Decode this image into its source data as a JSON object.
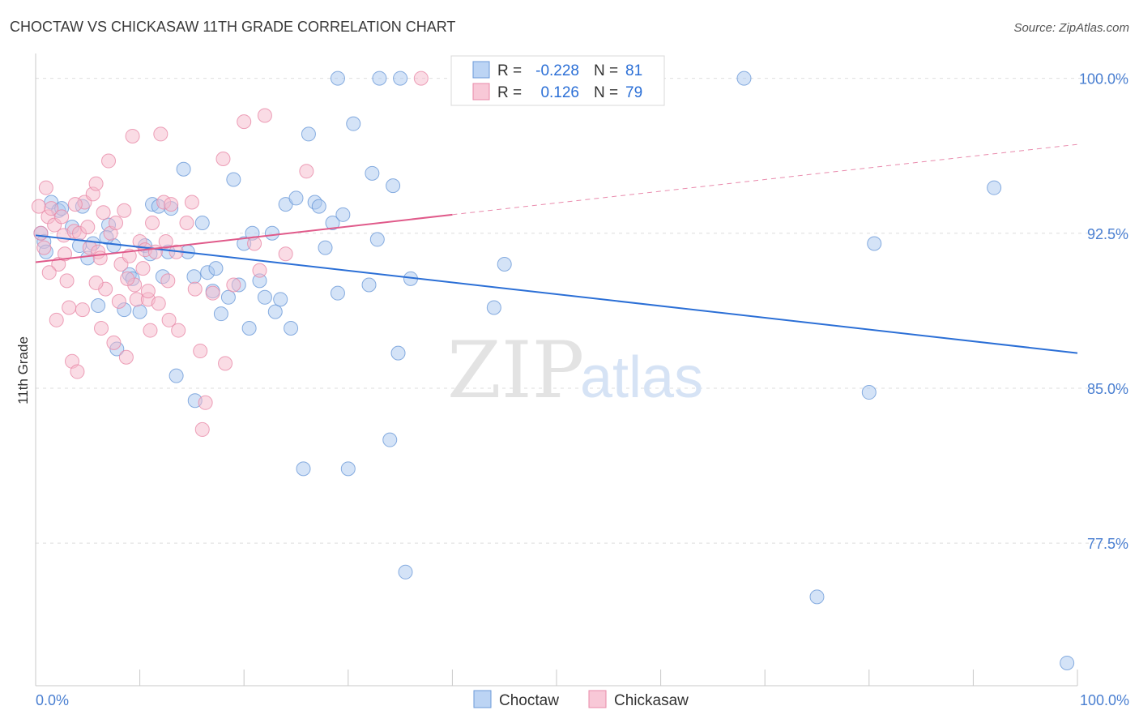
{
  "chart_data": {
    "type": "scatter",
    "title": "CHOCTAW VS CHICKASAW 11TH GRADE CORRELATION CHART",
    "source": "Source: ZipAtlas.com",
    "ylabel": "11th Grade",
    "xlim": [
      0,
      100
    ],
    "ylim": [
      70.6,
      101.2
    ],
    "yticks": [
      {
        "value": 100.0,
        "label": "100.0%"
      },
      {
        "value": 92.5,
        "label": "92.5%"
      },
      {
        "value": 85.0,
        "label": "85.0%"
      },
      {
        "value": 77.5,
        "label": "77.5%"
      }
    ],
    "xtick_labels": {
      "min": "0.0%",
      "max": "100.0%"
    },
    "grid": "horizontal dashed",
    "watermark": {
      "part1": "ZIP",
      "part2": "atlas"
    },
    "legend_stats": [
      {
        "r_label": "R =",
        "r_value": "-0.228",
        "n_label": "N =",
        "n_value": "81"
      },
      {
        "r_label": "R =",
        "r_value": "0.126",
        "n_label": "N =",
        "n_value": "79"
      }
    ],
    "series": [
      {
        "name": "Choctaw",
        "color": "#a9c8f0",
        "stroke": "#6b9ad8",
        "trend": {
          "x0": 0,
          "y0": 92.4,
          "x1": 100,
          "y1": 86.7,
          "color": "#2b6fd6"
        },
        "points": [
          [
            0.5,
            92.5
          ],
          [
            0.8,
            92.1
          ],
          [
            1.5,
            94.0
          ],
          [
            2.2,
            93.6
          ],
          [
            2.5,
            93.7
          ],
          [
            3.5,
            92.8
          ],
          [
            4.5,
            93.8
          ],
          [
            5.0,
            91.3
          ],
          [
            5.5,
            92.0
          ],
          [
            6.0,
            89.0
          ],
          [
            7.0,
            92.9
          ],
          [
            7.5,
            91.9
          ],
          [
            7.8,
            86.9
          ],
          [
            8.5,
            88.8
          ],
          [
            9.0,
            90.5
          ],
          [
            9.3,
            90.3
          ],
          [
            10.0,
            88.7
          ],
          [
            10.5,
            91.9
          ],
          [
            11.0,
            91.5
          ],
          [
            11.2,
            93.9
          ],
          [
            11.8,
            93.8
          ],
          [
            12.2,
            90.4
          ],
          [
            12.7,
            91.6
          ],
          [
            13.0,
            93.7
          ],
          [
            13.5,
            85.6
          ],
          [
            14.2,
            95.6
          ],
          [
            14.6,
            91.6
          ],
          [
            15.2,
            90.4
          ],
          [
            15.3,
            84.4
          ],
          [
            16.0,
            93.0
          ],
          [
            16.5,
            90.6
          ],
          [
            17.0,
            89.7
          ],
          [
            17.3,
            90.8
          ],
          [
            17.8,
            88.6
          ],
          [
            18.5,
            89.4
          ],
          [
            19.0,
            95.1
          ],
          [
            19.5,
            90.0
          ],
          [
            20.0,
            92.0
          ],
          [
            20.5,
            87.9
          ],
          [
            20.8,
            92.5
          ],
          [
            21.5,
            90.2
          ],
          [
            22.0,
            89.4
          ],
          [
            22.7,
            92.5
          ],
          [
            23.0,
            88.7
          ],
          [
            23.5,
            89.3
          ],
          [
            24.0,
            93.9
          ],
          [
            24.5,
            87.9
          ],
          [
            25.0,
            94.2
          ],
          [
            25.7,
            81.1
          ],
          [
            26.2,
            97.3
          ],
          [
            26.8,
            94.0
          ],
          [
            27.2,
            93.8
          ],
          [
            27.8,
            91.8
          ],
          [
            28.5,
            93.0
          ],
          [
            29.0,
            89.6
          ],
          [
            29.5,
            93.4
          ],
          [
            30.0,
            81.1
          ],
          [
            30.5,
            97.8
          ],
          [
            32.0,
            90.0
          ],
          [
            32.3,
            95.4
          ],
          [
            32.8,
            92.2
          ],
          [
            34.0,
            82.5
          ],
          [
            34.3,
            94.8
          ],
          [
            34.8,
            86.7
          ],
          [
            35.5,
            76.1
          ],
          [
            36.0,
            90.3
          ],
          [
            44.0,
            88.9
          ],
          [
            45.0,
            91.0
          ],
          [
            47.0,
            100.0
          ],
          [
            68.0,
            100.0
          ],
          [
            75.0,
            74.9
          ],
          [
            80.0,
            84.8
          ],
          [
            80.5,
            92.0
          ],
          [
            92.0,
            94.7
          ],
          [
            99.0,
            71.7
          ],
          [
            29.0,
            100.0
          ],
          [
            33.0,
            100.0
          ],
          [
            35.0,
            100.0
          ],
          [
            4.2,
            91.9
          ],
          [
            6.8,
            92.3
          ],
          [
            1.0,
            91.6
          ]
        ]
      },
      {
        "name": "Chickasaw",
        "color": "#f5b9cc",
        "stroke": "#e88aa8",
        "trend": {
          "x0": 0,
          "y0": 91.1,
          "x1": 40,
          "y1": 93.4,
          "dash_to_x": 100,
          "dash_to_y": 96.8,
          "color": "#e05a8a"
        },
        "points": [
          [
            0.3,
            93.8
          ],
          [
            0.5,
            92.5
          ],
          [
            0.8,
            91.8
          ],
          [
            1.0,
            94.7
          ],
          [
            1.2,
            93.3
          ],
          [
            1.5,
            93.7
          ],
          [
            1.8,
            92.9
          ],
          [
            2.0,
            88.3
          ],
          [
            2.2,
            91.0
          ],
          [
            2.5,
            93.3
          ],
          [
            2.7,
            92.4
          ],
          [
            3.0,
            90.2
          ],
          [
            3.2,
            88.9
          ],
          [
            3.5,
            86.3
          ],
          [
            3.7,
            92.6
          ],
          [
            4.0,
            85.8
          ],
          [
            4.2,
            92.5
          ],
          [
            4.5,
            88.8
          ],
          [
            4.7,
            94.0
          ],
          [
            5.0,
            92.8
          ],
          [
            5.2,
            91.8
          ],
          [
            5.5,
            94.4
          ],
          [
            5.8,
            94.9
          ],
          [
            6.0,
            91.6
          ],
          [
            6.2,
            91.3
          ],
          [
            6.5,
            93.5
          ],
          [
            6.7,
            89.8
          ],
          [
            7.0,
            96.0
          ],
          [
            7.2,
            92.5
          ],
          [
            7.5,
            87.2
          ],
          [
            7.7,
            93.0
          ],
          [
            8.0,
            89.2
          ],
          [
            8.2,
            91.0
          ],
          [
            8.5,
            93.6
          ],
          [
            8.7,
            86.5
          ],
          [
            9.0,
            91.4
          ],
          [
            9.3,
            97.2
          ],
          [
            9.5,
            90.0
          ],
          [
            9.7,
            89.3
          ],
          [
            10.0,
            92.1
          ],
          [
            10.3,
            90.8
          ],
          [
            10.5,
            91.7
          ],
          [
            10.8,
            89.3
          ],
          [
            11.0,
            87.8
          ],
          [
            11.2,
            93.0
          ],
          [
            11.5,
            91.6
          ],
          [
            11.8,
            89.1
          ],
          [
            12.0,
            97.3
          ],
          [
            12.3,
            94.0
          ],
          [
            12.5,
            92.1
          ],
          [
            12.8,
            88.3
          ],
          [
            13.0,
            93.9
          ],
          [
            13.5,
            91.6
          ],
          [
            13.7,
            87.8
          ],
          [
            14.5,
            93.0
          ],
          [
            15.0,
            94.0
          ],
          [
            15.3,
            89.8
          ],
          [
            15.8,
            86.8
          ],
          [
            16.3,
            84.3
          ],
          [
            17.0,
            89.6
          ],
          [
            18.0,
            96.1
          ],
          [
            18.2,
            86.2
          ],
          [
            20.0,
            97.9
          ],
          [
            21.0,
            92.0
          ],
          [
            21.5,
            90.7
          ],
          [
            22.0,
            98.2
          ],
          [
            24.0,
            91.5
          ],
          [
            26.0,
            95.5
          ],
          [
            37.0,
            100.0
          ],
          [
            1.3,
            90.6
          ],
          [
            2.8,
            91.5
          ],
          [
            6.3,
            87.9
          ],
          [
            8.8,
            90.3
          ],
          [
            12.7,
            90.2
          ],
          [
            16.0,
            83.0
          ],
          [
            19.0,
            90.0
          ],
          [
            5.8,
            90.1
          ],
          [
            3.8,
            93.9
          ],
          [
            10.8,
            89.7
          ]
        ]
      }
    ]
  }
}
